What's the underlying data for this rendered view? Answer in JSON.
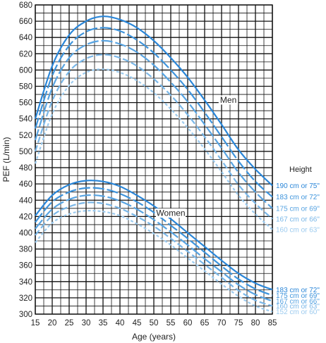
{
  "chart_data": {
    "type": "line",
    "title": "",
    "xlabel": "Age (years)",
    "ylabel": "PEF (L/min)",
    "xlim": [
      15,
      85
    ],
    "ylim": [
      300,
      680
    ],
    "x_ticks": [
      15,
      20,
      25,
      30,
      35,
      40,
      45,
      50,
      55,
      60,
      65,
      70,
      75,
      80,
      85
    ],
    "y_ticks": [
      300,
      320,
      340,
      360,
      380,
      400,
      420,
      440,
      460,
      480,
      500,
      520,
      540,
      560,
      580,
      600,
      620,
      640,
      660,
      680
    ],
    "grid": true,
    "legend_title": "Height",
    "group_labels": [
      "Men",
      "Women"
    ],
    "series": [
      {
        "name": "190 cm or 75\"",
        "group": "Men",
        "color": "#2a86d8",
        "dash": "solid",
        "x": [
          15,
          20,
          25,
          30,
          35,
          40,
          45,
          50,
          55,
          60,
          65,
          70,
          75,
          80,
          85
        ],
        "y": [
          540,
          605,
          643,
          660,
          666,
          662,
          652,
          636,
          615,
          591,
          563,
          533,
          502,
          478,
          458
        ]
      },
      {
        "name": "183 cm or 72\"",
        "group": "Men",
        "color": "#3e94dc",
        "dash": "long",
        "x": [
          15,
          20,
          25,
          30,
          35,
          40,
          45,
          50,
          55,
          60,
          65,
          70,
          75,
          80,
          85
        ],
        "y": [
          528,
          593,
          630,
          647,
          652,
          648,
          637,
          621,
          600,
          576,
          548,
          518,
          488,
          463,
          444
        ]
      },
      {
        "name": "175 cm or 69\"",
        "group": "Men",
        "color": "#58a4e2",
        "dash": "long",
        "x": [
          15,
          20,
          25,
          30,
          35,
          40,
          45,
          50,
          55,
          60,
          65,
          70,
          75,
          80,
          85
        ],
        "y": [
          514,
          578,
          615,
          631,
          636,
          632,
          622,
          606,
          585,
          561,
          533,
          504,
          474,
          450,
          430
        ]
      },
      {
        "name": "167 cm or 66\"",
        "group": "Men",
        "color": "#7ab7e8",
        "dash": "medium",
        "x": [
          15,
          20,
          25,
          30,
          35,
          40,
          45,
          50,
          55,
          60,
          65,
          70,
          75,
          80,
          85
        ],
        "y": [
          500,
          562,
          598,
          614,
          619,
          615,
          605,
          589,
          569,
          545,
          518,
          489,
          459,
          436,
          417
        ]
      },
      {
        "name": "160 cm or 63\"",
        "group": "Men",
        "color": "#9ccbef",
        "dash": "short",
        "x": [
          15,
          20,
          25,
          30,
          35,
          40,
          45,
          50,
          55,
          60,
          65,
          70,
          75,
          80,
          85
        ],
        "y": [
          485,
          546,
          581,
          597,
          601,
          597,
          587,
          572,
          552,
          529,
          503,
          475,
          446,
          423,
          404
        ]
      },
      {
        "name": "183 cm or 72\"",
        "group": "Women",
        "color": "#2a86d8",
        "dash": "solid",
        "x": [
          15,
          20,
          25,
          30,
          35,
          40,
          45,
          50,
          55,
          60,
          65,
          70,
          75,
          80,
          85
        ],
        "y": [
          421,
          446,
          459,
          464,
          463,
          457,
          446,
          433,
          417,
          400,
          383,
          366,
          350,
          338,
          330
        ]
      },
      {
        "name": "175 cm or 69\"",
        "group": "Women",
        "color": "#3e94dc",
        "dash": "long",
        "x": [
          15,
          20,
          25,
          30,
          35,
          40,
          45,
          50,
          55,
          60,
          65,
          70,
          75,
          80,
          85
        ],
        "y": [
          413,
          438,
          450,
          455,
          454,
          448,
          438,
          425,
          409,
          393,
          376,
          359,
          343,
          331,
          323
        ]
      },
      {
        "name": "167 cm or 66\"",
        "group": "Women",
        "color": "#58a4e2",
        "dash": "long",
        "x": [
          15,
          20,
          25,
          30,
          35,
          40,
          45,
          50,
          55,
          60,
          65,
          70,
          75,
          80,
          85
        ],
        "y": [
          405,
          429,
          441,
          446,
          445,
          439,
          429,
          416,
          401,
          385,
          368,
          352,
          336,
          324,
          316
        ]
      },
      {
        "name": "160 cm or 63\"",
        "group": "Women",
        "color": "#7ab7e8",
        "dash": "medium",
        "x": [
          15,
          20,
          25,
          30,
          35,
          40,
          45,
          50,
          55,
          60,
          65,
          70,
          75,
          80,
          85
        ],
        "y": [
          397,
          421,
          432,
          437,
          436,
          430,
          420,
          408,
          393,
          377,
          361,
          345,
          329,
          317,
          310
        ]
      },
      {
        "name": "152 cm or 60\"",
        "group": "Women",
        "color": "#9ccbef",
        "dash": "short",
        "x": [
          15,
          20,
          25,
          30,
          35,
          40,
          45,
          50,
          55,
          60,
          65,
          70,
          75,
          80,
          85
        ],
        "y": [
          388,
          412,
          423,
          427,
          426,
          421,
          411,
          399,
          385,
          369,
          353,
          337,
          322,
          310,
          303
        ]
      }
    ]
  }
}
